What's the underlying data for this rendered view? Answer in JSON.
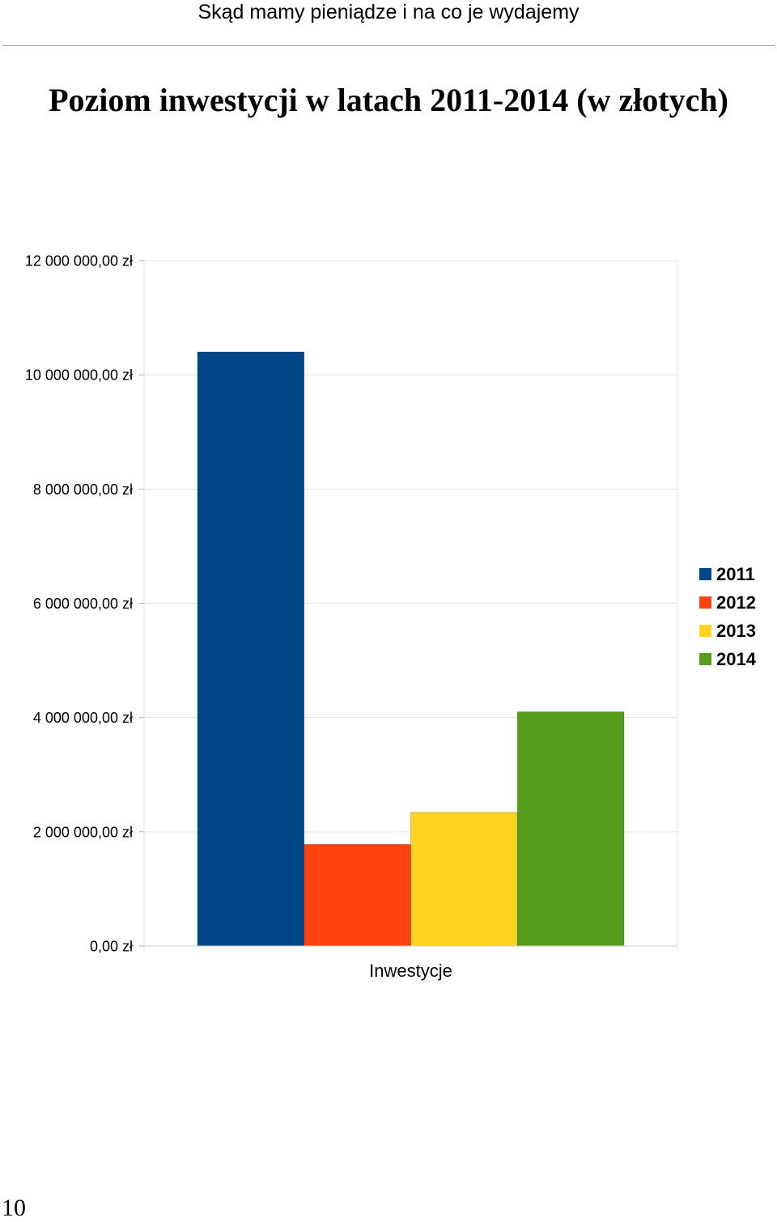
{
  "header": {
    "running_title": "Skąd mamy pieniądze i na co je wydajemy"
  },
  "title": "Poziom inwestycji w latach 2011-2014 (w złotych)",
  "page_number": "10",
  "chart_data": {
    "type": "bar",
    "categories": [
      "Inwestycje"
    ],
    "xlabel": "Inwestycje",
    "ylabel": "",
    "ylim": [
      0,
      12000000
    ],
    "y_ticks": [
      0,
      2000000,
      4000000,
      6000000,
      8000000,
      10000000,
      12000000
    ],
    "y_tick_labels": [
      "0,00 zł",
      "2 000 000,00 zł",
      "4 000 000,00 zł",
      "6 000 000,00 zł",
      "8 000 000,00 zł",
      "10 000 000,00 zł",
      "12 000 000,00 zł"
    ],
    "grid": true,
    "legend_position": "right",
    "series": [
      {
        "name": "2011",
        "color": "#004586",
        "values": [
          10400000
        ]
      },
      {
        "name": "2012",
        "color": "#ff420e",
        "values": [
          1780000
        ]
      },
      {
        "name": "2013",
        "color": "#ffd320",
        "values": [
          2340000
        ]
      },
      {
        "name": "2014",
        "color": "#579d1c",
        "values": [
          4100000
        ]
      }
    ]
  }
}
